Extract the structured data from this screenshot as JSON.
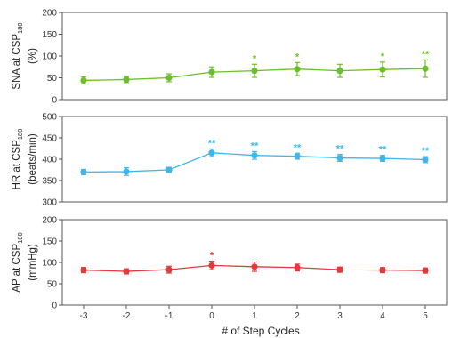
{
  "chart_data": {
    "type": "line",
    "x": [
      -3,
      -2,
      -1,
      0,
      1,
      2,
      3,
      4,
      5
    ],
    "x_tick_labels": [
      "-3",
      "-2",
      "-1",
      "0",
      "1",
      "2",
      "3",
      "4",
      "5"
    ],
    "xlabel": "# of Step Cycles",
    "panels": [
      {
        "id": "sna",
        "ylabel_line1": "SNA at CSP",
        "ylabel_sub": "180",
        "ylabel_line2": "(%)",
        "ylim": [
          0,
          200
        ],
        "yticks": [
          0,
          50,
          100,
          150,
          200
        ],
        "ytick_labels": [
          "0",
          "50",
          "100",
          "150",
          "200"
        ],
        "color": "#6cbf2a",
        "values": [
          44,
          46,
          50,
          63,
          66,
          70,
          66,
          69,
          71
        ],
        "errors": [
          8,
          7,
          9,
          12,
          15,
          15,
          15,
          17,
          20
        ],
        "significance": [
          "",
          "",
          "",
          "",
          "*",
          "*",
          "",
          "*",
          "**"
        ]
      },
      {
        "id": "hr",
        "ylabel_line1": "HR at CSP",
        "ylabel_sub": "180",
        "ylabel_line2": "(beats/min)",
        "ylim": [
          300,
          500
        ],
        "yticks": [
          300,
          350,
          400,
          450,
          500
        ],
        "ytick_labels": [
          "300",
          "350",
          "400",
          "450",
          "500"
        ],
        "color": "#3fb6ea",
        "values": [
          370,
          371,
          375,
          415,
          409,
          407,
          403,
          402,
          399
        ],
        "errors": [
          6,
          9,
          6,
          9,
          9,
          7,
          8,
          7,
          7
        ],
        "significance": [
          "",
          "",
          "",
          "**",
          "**",
          "**",
          "**",
          "**",
          "**"
        ]
      },
      {
        "id": "ap",
        "ylabel_line1": "AP at CSP",
        "ylabel_sub": "180",
        "ylabel_line2": "(mmHg)",
        "ylim": [
          0,
          200
        ],
        "yticks": [
          0,
          50,
          100,
          150,
          200
        ],
        "ytick_labels": [
          "0",
          "50",
          "100",
          "150",
          "200"
        ],
        "color": "#e2393a",
        "values": [
          82,
          79,
          83,
          93,
          90,
          88,
          83,
          82,
          81
        ],
        "errors": [
          6,
          6,
          8,
          10,
          11,
          8,
          6,
          6,
          6
        ],
        "significance": [
          "",
          "",
          "",
          "*",
          "",
          "",
          "",
          "",
          ""
        ]
      }
    ]
  }
}
